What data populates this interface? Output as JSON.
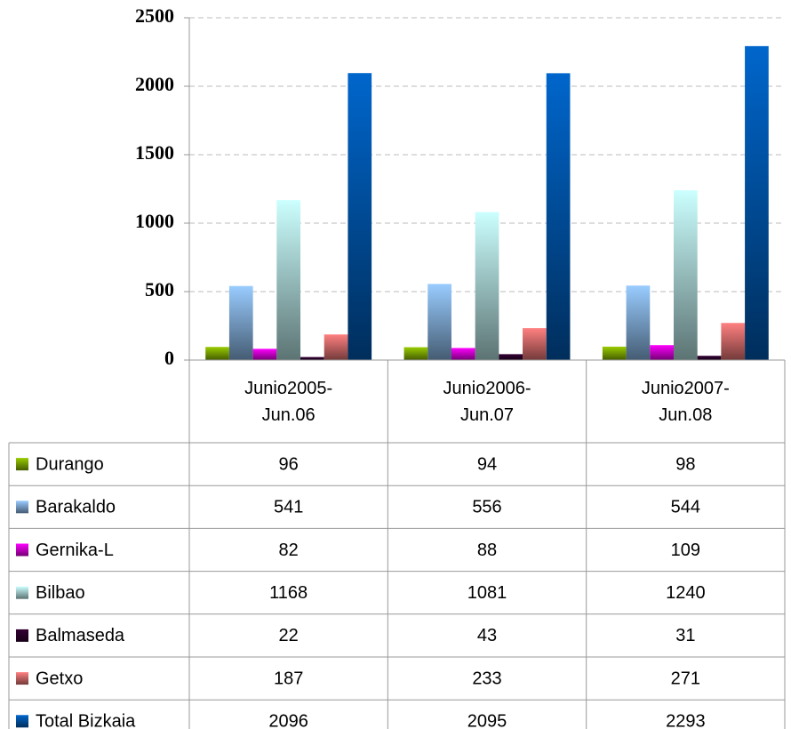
{
  "chart_data": {
    "type": "bar",
    "categories": [
      "Junio2005-Jun.06",
      "Junio2006-Jun.07",
      "Junio2007-Jun.08"
    ],
    "series": [
      {
        "name": "Durango",
        "color": "#99cc00",
        "values": [
          96,
          94,
          98
        ]
      },
      {
        "name": "Barakaldo",
        "color": "#99ccff",
        "values": [
          541,
          556,
          544
        ]
      },
      {
        "name": "Gernika-L",
        "color": "#ff00ff",
        "values": [
          82,
          88,
          109
        ]
      },
      {
        "name": "Bilbao",
        "color": "#ccffff",
        "values": [
          1168,
          1081,
          1240
        ]
      },
      {
        "name": "Balmaseda",
        "color": "#330033",
        "values": [
          22,
          43,
          31
        ]
      },
      {
        "name": "Getxo",
        "color": "#ff8080",
        "values": [
          187,
          233,
          271
        ]
      },
      {
        "name": "Total Bizkaia",
        "color": "#0066cc",
        "values": [
          2096,
          2095,
          2293
        ]
      }
    ],
    "ylim": [
      0,
      2500
    ],
    "yticks": [
      0,
      500,
      1000,
      1500,
      2000,
      2500
    ],
    "grid": true
  }
}
